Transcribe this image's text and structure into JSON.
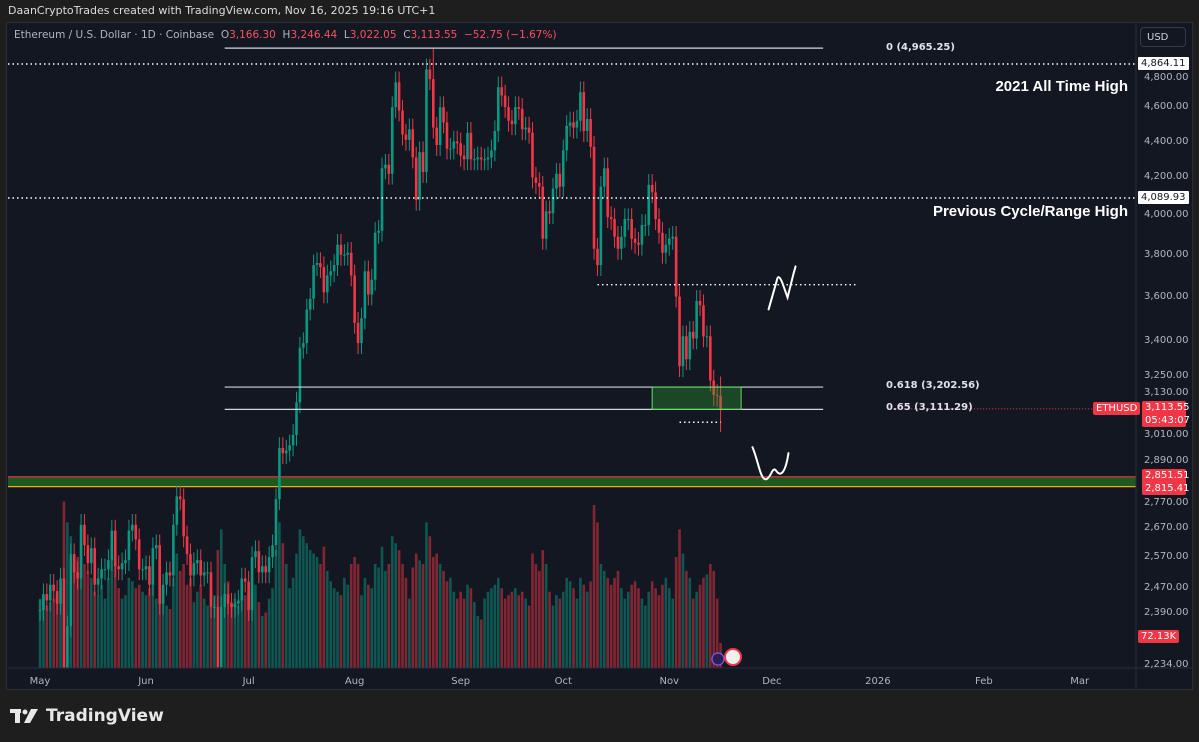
{
  "banner": "DaanCryptoTrades created with TradingView.com, Nov 16, 2025 19:16 UTC+1",
  "legend": {
    "symbol": "Ethereum / U.S. Dollar · 1D · Coinbase",
    "o_label": "O",
    "o": "3,166.30",
    "h_label": "H",
    "h": "3,246.44",
    "l_label": "L",
    "l": "3,022.05",
    "c_label": "C",
    "c": "3,113.55",
    "change": "−52.75 (−1.67%)"
  },
  "currency_button": "USD",
  "annotations": {
    "ath": "2021 All Time High",
    "prev_high": "Previous Cycle/Range High"
  },
  "fib_labels": {
    "f0": "0 (4,965.25)",
    "f618": "0.618 (3,202.56)",
    "f65": "0.65 (3,111.29)"
  },
  "price_tags": {
    "ath_line": "4,864.11",
    "prev_high_line": "4,089.93",
    "symbol": "ETHUSD",
    "last_price": "3,113.55",
    "countdown": "05:43:07",
    "zone_top": "2,851.51",
    "zone_bottom": "2,815.41",
    "volume": "72.13K"
  },
  "footer": {
    "brand": "TradingView",
    "logo_icon": "tradingview-logo-icon"
  },
  "colors": {
    "up": "#089981",
    "down": "#f23645",
    "bg": "#131722",
    "zone": "#1e5a1e",
    "box": "#2e7d32"
  },
  "chart_data": {
    "type": "candlestick",
    "symbol": "ETHUSD",
    "interval": "1D",
    "y_scale": "log",
    "ylim": [
      2234,
      4990
    ],
    "grid": false,
    "start_date": "2025-05-01",
    "y_ticks": [
      "4,800.00",
      "4,600.00",
      "4,400.00",
      "4,200.00",
      "4,000.00",
      "3,800.00",
      "3,600.00",
      "3,400.00",
      "3,250.00",
      "3,130.00",
      "3,010.00",
      "2,890.00",
      "2,770.00",
      "2,670.00",
      "2,570.00",
      "2,470.00",
      "2,390.00",
      "2,234.00"
    ],
    "x_ticks": [
      [
        "May",
        "2025-05-01"
      ],
      [
        "Jun",
        "2025-06-01"
      ],
      [
        "Jul",
        "2025-07-01"
      ],
      [
        "Aug",
        "2025-08-01"
      ],
      [
        "Sep",
        "2025-09-01"
      ],
      [
        "Oct",
        "2025-10-01"
      ],
      [
        "Nov",
        "2025-11-01"
      ],
      [
        "Dec",
        "2025-12-01"
      ],
      [
        "2026",
        "2026-01-01"
      ],
      [
        "Feb",
        "2026-02-01"
      ],
      [
        "Mar",
        "2026-03-01"
      ]
    ],
    "closes": [
      2400,
      2450,
      2430,
      2480,
      2460,
      2420,
      2500,
      2200,
      2350,
      2580,
      2520,
      2500,
      2680,
      2610,
      2550,
      2600,
      2480,
      2500,
      2530,
      2530,
      2560,
      2660,
      2540,
      2530,
      2550,
      2560,
      2660,
      2680,
      2630,
      2530,
      2530,
      2540,
      2480,
      2600,
      2610,
      2420,
      2480,
      2520,
      2510,
      2680,
      2780,
      2770,
      2640,
      2580,
      2510,
      2550,
      2560,
      2510,
      2520,
      2520,
      2410,
      2410,
      2230,
      2410,
      2450,
      2420,
      2410,
      2420,
      2430,
      2500,
      2490,
      2400,
      2570,
      2590,
      2520,
      2540,
      2520,
      2570,
      2610,
      2770,
      2960,
      2940,
      2950,
      2970,
      3010,
      3140,
      3370,
      3390,
      3540,
      3590,
      3750,
      3760,
      3740,
      3620,
      3700,
      3720,
      3750,
      3850,
      3800,
      3800,
      3810,
      3700,
      3480,
      3390,
      3500,
      3720,
      3610,
      3680,
      3910,
      3920,
      4250,
      4270,
      4220,
      4600,
      4750,
      4580,
      4440,
      4410,
      4470,
      4310,
      4080,
      4340,
      4230,
      4830,
      4770,
      4480,
      4380,
      4600,
      4510,
      4360,
      4360,
      4400,
      4390,
      4320,
      4300,
      4450,
      4300,
      4300,
      4310,
      4300,
      4300,
      4310,
      4350,
      4460,
      4720,
      4670,
      4600,
      4520,
      4500,
      4600,
      4590,
      4470,
      4480,
      4450,
      4200,
      4170,
      4150,
      3880,
      4020,
      4010,
      4140,
      4220,
      4150,
      4350,
      4490,
      4510,
      4480,
      4520,
      4690,
      4460,
      4530,
      4370,
      3830,
      3750,
      4150,
      4250,
      3990,
      3980,
      3890,
      3830,
      3890,
      3980,
      3980,
      3880,
      3860,
      3850,
      3950,
      3950,
      4160,
      4120,
      3980,
      3910,
      3810,
      3850,
      3880,
      3890,
      3600,
      3290,
      3420,
      3320,
      3440,
      3410,
      3580,
      3560,
      3420,
      3420,
      3230,
      3170,
      3166.3,
      3113.55
    ],
    "last_candle": {
      "open": 3166.3,
      "high": 3246.44,
      "low": 3022.05,
      "close": 3113.55
    },
    "all_time_high": 4965.25,
    "volume_unit": "K",
    "volumes": [
      200,
      210,
      180,
      190,
      200,
      210,
      230,
      480,
      420,
      380,
      300,
      320,
      350,
      300,
      280,
      260,
      220,
      210,
      240,
      200,
      260,
      320,
      300,
      230,
      200,
      210,
      260,
      250,
      230,
      240,
      220,
      210,
      230,
      250,
      200,
      300,
      230,
      180,
      170,
      260,
      330,
      280,
      300,
      240,
      260,
      190,
      220,
      240,
      200,
      180,
      230,
      210,
      340,
      400,
      300,
      250,
      190,
      200,
      180,
      220,
      210,
      220,
      260,
      240,
      190,
      150,
      160,
      200,
      230,
      340,
      420,
      360,
      300,
      230,
      260,
      330,
      400,
      380,
      360,
      340,
      330,
      320,
      300,
      350,
      280,
      250,
      230,
      220,
      210,
      260,
      240,
      300,
      320,
      300,
      210,
      260,
      240,
      230,
      300,
      290,
      350,
      280,
      300,
      380,
      360,
      340,
      300,
      260,
      200,
      290,
      330,
      310,
      300,
      420,
      380,
      320,
      330,
      300,
      280,
      250,
      260,
      220,
      200,
      220,
      200,
      240,
      230,
      190,
      150,
      140,
      200,
      220,
      230,
      240,
      260,
      230,
      200,
      210,
      220,
      230,
      210,
      220,
      200,
      180,
      330,
      300,
      280,
      340,
      300,
      220,
      180,
      210,
      200,
      220,
      260,
      250,
      230,
      200,
      260,
      240,
      220,
      250,
      470,
      420,
      300,
      280,
      260,
      240,
      260,
      280,
      230,
      200,
      220,
      240,
      250,
      230,
      200,
      180,
      220,
      250,
      230,
      210,
      240,
      260,
      230,
      200,
      320,
      400,
      330,
      280,
      260,
      200,
      220,
      240,
      260,
      270,
      300,
      280,
      200,
      72.13
    ],
    "horizontal_levels": [
      {
        "price": 4864.11,
        "style": "dotted",
        "label": "2021 All Time High"
      },
      {
        "price": 4089.93,
        "style": "dotted",
        "label": "Previous Cycle/Range High"
      },
      {
        "price": 3656,
        "style": "dotted",
        "from": "2025-10-11",
        "to": "2025-12-26"
      },
      {
        "price": 3060,
        "style": "dotted",
        "from": "2025-11-04",
        "to": "2025-11-16"
      }
    ],
    "fibonacci": [
      {
        "level": 0,
        "price": 4965.25
      },
      {
        "level": 0.618,
        "price": 3202.56
      },
      {
        "level": 0.65,
        "price": 3111.29
      }
    ],
    "fib_range": {
      "from": "2025-06-24",
      "to": "2025-12-16"
    },
    "box_zone": {
      "top": 3202.56,
      "bottom": 3111.29,
      "from": "2025-10-27",
      "to": "2025-11-22"
    },
    "support_zone": {
      "top": 2851.51,
      "bottom": 2815.41
    },
    "drawings": [
      {
        "shape": "N",
        "at_date": "2025-12-05",
        "price": 3700
      },
      {
        "shape": "W",
        "at_date": "2025-11-30",
        "price": 2880
      }
    ]
  }
}
